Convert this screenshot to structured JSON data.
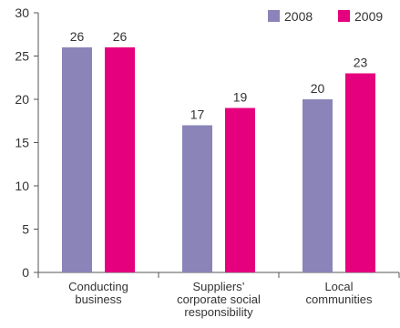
{
  "chart_data": {
    "type": "bar",
    "categories": [
      [
        "Conducting",
        "business"
      ],
      [
        "Suppliers’",
        "corporate social",
        "responsibility"
      ],
      [
        "Local",
        "communities"
      ]
    ],
    "series": [
      {
        "name": "2008",
        "values": [
          26,
          17,
          20
        ]
      },
      {
        "name": "2009",
        "values": [
          26,
          19,
          23
        ]
      }
    ],
    "ylim": [
      0,
      30
    ],
    "yticks": [
      0,
      5,
      10,
      15,
      20,
      25,
      30
    ],
    "grid": false,
    "legend_position": "top-right",
    "colors": {
      "2008": "#8a84b8",
      "2009": "#e5007e",
      "axis": "#555555"
    }
  }
}
